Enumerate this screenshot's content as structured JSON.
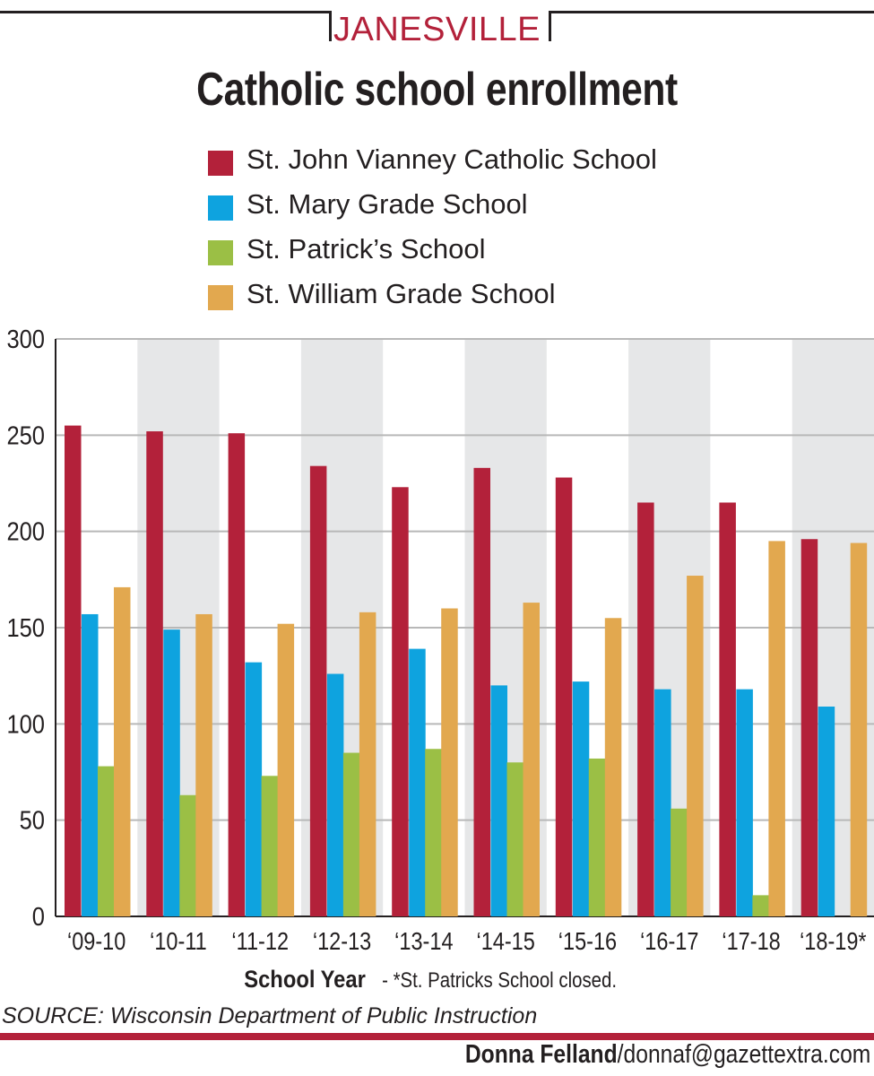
{
  "kicker": "JANESVILLE",
  "title": "Catholic school enrollment",
  "legend": [
    {
      "label": "St. John Vianney Catholic School",
      "color": "#b3213a"
    },
    {
      "label": "St. Mary Grade School",
      "color": "#0ea3df"
    },
    {
      "label": "St. Patrick’s School",
      "color": "#9bbf45"
    },
    {
      "label": "St. William Grade School",
      "color": "#e2a84f"
    }
  ],
  "x_axis": {
    "title": "School Year",
    "note": " - *St. Patricks School closed."
  },
  "source": "SOURCE: Wisconsin Department of Public Instruction",
  "credit": {
    "name": "Donna Felland",
    "email": "/donnaf@gazettextra.com"
  },
  "chart_data": {
    "type": "bar",
    "title": "Catholic school enrollment",
    "xlabel": "School Year",
    "ylabel": "",
    "ylim": [
      0,
      300
    ],
    "yticks": [
      0,
      50,
      100,
      150,
      200,
      250,
      300
    ],
    "categories": [
      "‘09-10",
      "‘10-11",
      "‘11-12",
      "‘12-13",
      "‘13-14",
      "‘14-15",
      "‘15-16",
      "‘16-17",
      "‘17-18",
      "‘18-19*"
    ],
    "series": [
      {
        "name": "St. John Vianney Catholic School",
        "color": "#b3213a",
        "values": [
          255,
          252,
          251,
          234,
          223,
          233,
          228,
          215,
          215,
          196
        ]
      },
      {
        "name": "St. Mary Grade School",
        "color": "#0ea3df",
        "values": [
          157,
          149,
          132,
          126,
          139,
          120,
          122,
          118,
          118,
          109
        ]
      },
      {
        "name": "St. Patrick’s School",
        "color": "#9bbf45",
        "values": [
          78,
          63,
          73,
          85,
          87,
          80,
          82,
          56,
          11,
          null
        ]
      },
      {
        "name": "St. William Grade School",
        "color": "#e2a84f",
        "values": [
          171,
          157,
          152,
          158,
          160,
          163,
          155,
          177,
          195,
          194
        ]
      }
    ],
    "grid": true,
    "shaded_alternate_columns": true,
    "legend_position": "top"
  }
}
